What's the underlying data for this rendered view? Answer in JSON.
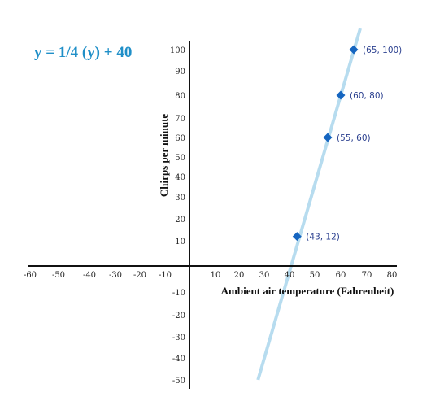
{
  "chart_data": {
    "type": "scatter",
    "title": "y = 1/4 (y) + 40",
    "xlabel": "Ambient air temperature (Fahrenheit)",
    "ylabel": "Chirps per minute",
    "xlim": [
      -60,
      80
    ],
    "ylim": [
      -50,
      100
    ],
    "x_ticks": [
      -60,
      -50,
      -40,
      -30,
      -20,
      -10,
      10,
      20,
      30,
      40,
      50,
      60,
      70,
      80
    ],
    "y_ticks": [
      100,
      90,
      80,
      70,
      60,
      50,
      40,
      30,
      20,
      10,
      -10,
      -20,
      -30,
      -40,
      -50
    ],
    "points": [
      {
        "x": 43,
        "y": 12,
        "label": "(43, 12)"
      },
      {
        "x": 55,
        "y": 60,
        "label": "(55, 60)"
      },
      {
        "x": 60,
        "y": 80,
        "label": "(60, 80)"
      },
      {
        "x": 65,
        "y": 100,
        "label": "(65, 100)"
      }
    ],
    "trend_line": {
      "x1": 27.5,
      "y1": -50,
      "x2": 67.5,
      "y2": 110
    },
    "grid": false
  },
  "colors": {
    "title": "#1f8fc8",
    "point": "#1565c0",
    "point_label": "#2a3f8f",
    "trend_line": "#b7dcef",
    "axis": "#111111"
  }
}
